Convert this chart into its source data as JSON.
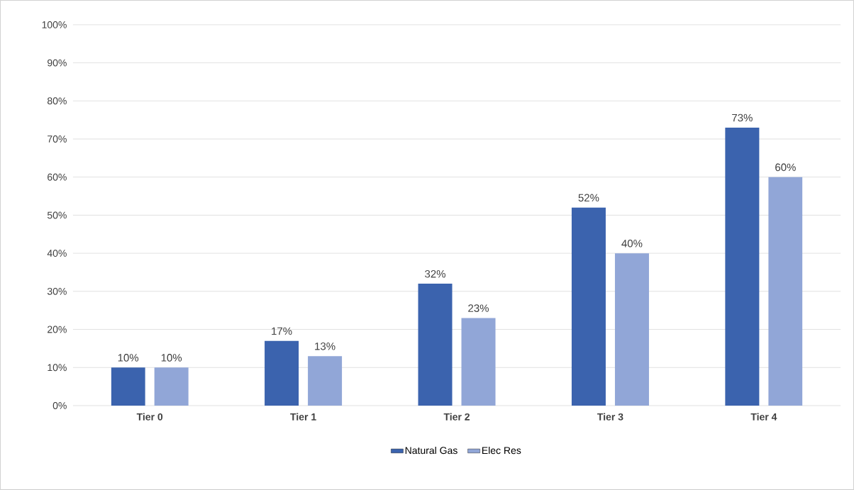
{
  "chart_data": {
    "type": "bar",
    "categories": [
      "Tier 0",
      "Tier 1",
      "Tier 2",
      "Tier 3",
      "Tier 4"
    ],
    "series": [
      {
        "name": "Natural Gas",
        "color": "#3b63ae",
        "values": [
          10,
          17,
          32,
          52,
          73
        ],
        "value_labels": [
          "10%",
          "17%",
          "32%",
          "52%",
          "73%"
        ]
      },
      {
        "name": "Elec Res",
        "color": "#91a6d7",
        "values": [
          10,
          13,
          23,
          40,
          60
        ],
        "value_labels": [
          "10%",
          "13%",
          "23%",
          "40%",
          "60%"
        ]
      }
    ],
    "ylim": [
      0,
      100
    ],
    "yticks": [
      {
        "value": 0,
        "label": "0%"
      },
      {
        "value": 10,
        "label": "10%"
      },
      {
        "value": 20,
        "label": "20%"
      },
      {
        "value": 30,
        "label": "30%"
      },
      {
        "value": 40,
        "label": "40%"
      },
      {
        "value": 50,
        "label": "50%"
      },
      {
        "value": 60,
        "label": "60%"
      },
      {
        "value": 70,
        "label": "70%"
      },
      {
        "value": 80,
        "label": "80%"
      },
      {
        "value": 90,
        "label": "90%"
      },
      {
        "value": 100,
        "label": "100%"
      }
    ],
    "grid": "y",
    "legend": "bottom"
  }
}
